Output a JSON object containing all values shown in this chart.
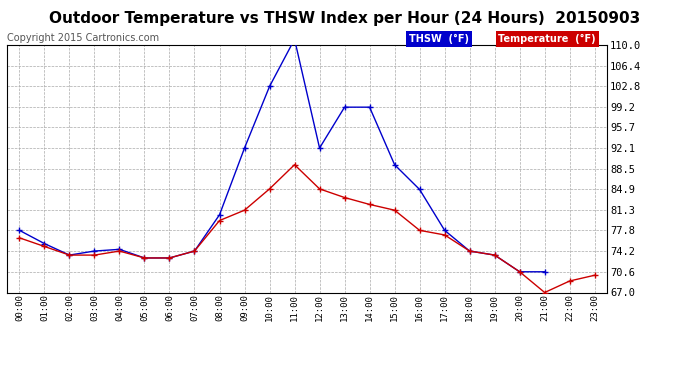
{
  "title": "Outdoor Temperature vs THSW Index per Hour (24 Hours)  20150903",
  "copyright": "Copyright 2015 Cartronics.com",
  "hours": [
    "00:00",
    "01:00",
    "02:00",
    "03:00",
    "04:00",
    "05:00",
    "06:00",
    "07:00",
    "08:00",
    "09:00",
    "10:00",
    "11:00",
    "12:00",
    "13:00",
    "14:00",
    "15:00",
    "16:00",
    "17:00",
    "18:00",
    "19:00",
    "20:00",
    "21:00",
    "22:00",
    "23:00"
  ],
  "thsw": [
    77.8,
    75.5,
    73.5,
    74.2,
    74.5,
    73.0,
    73.0,
    74.2,
    80.5,
    92.1,
    102.8,
    111.0,
    92.1,
    99.2,
    99.2,
    89.2,
    84.9,
    77.8,
    74.2,
    73.5,
    70.6,
    70.6,
    null,
    null
  ],
  "temp": [
    76.5,
    75.0,
    73.5,
    73.5,
    74.2,
    73.0,
    73.0,
    74.2,
    79.5,
    81.3,
    85.0,
    89.2,
    85.0,
    83.5,
    82.3,
    81.3,
    77.8,
    77.0,
    74.2,
    73.5,
    70.6,
    67.0,
    69.0,
    70.0
  ],
  "ylim": [
    67.0,
    110.0
  ],
  "yticks": [
    67.0,
    70.6,
    74.2,
    77.8,
    81.3,
    84.9,
    88.5,
    92.1,
    95.7,
    99.2,
    102.8,
    106.4,
    110.0
  ],
  "thsw_color": "#0000cc",
  "temp_color": "#cc0000",
  "bg_color": "#ffffff",
  "grid_color": "#aaaaaa",
  "title_fontsize": 11,
  "copyright_fontsize": 7,
  "legend_thsw_label": "THSW  (°F)",
  "legend_temp_label": "Temperature  (°F)"
}
